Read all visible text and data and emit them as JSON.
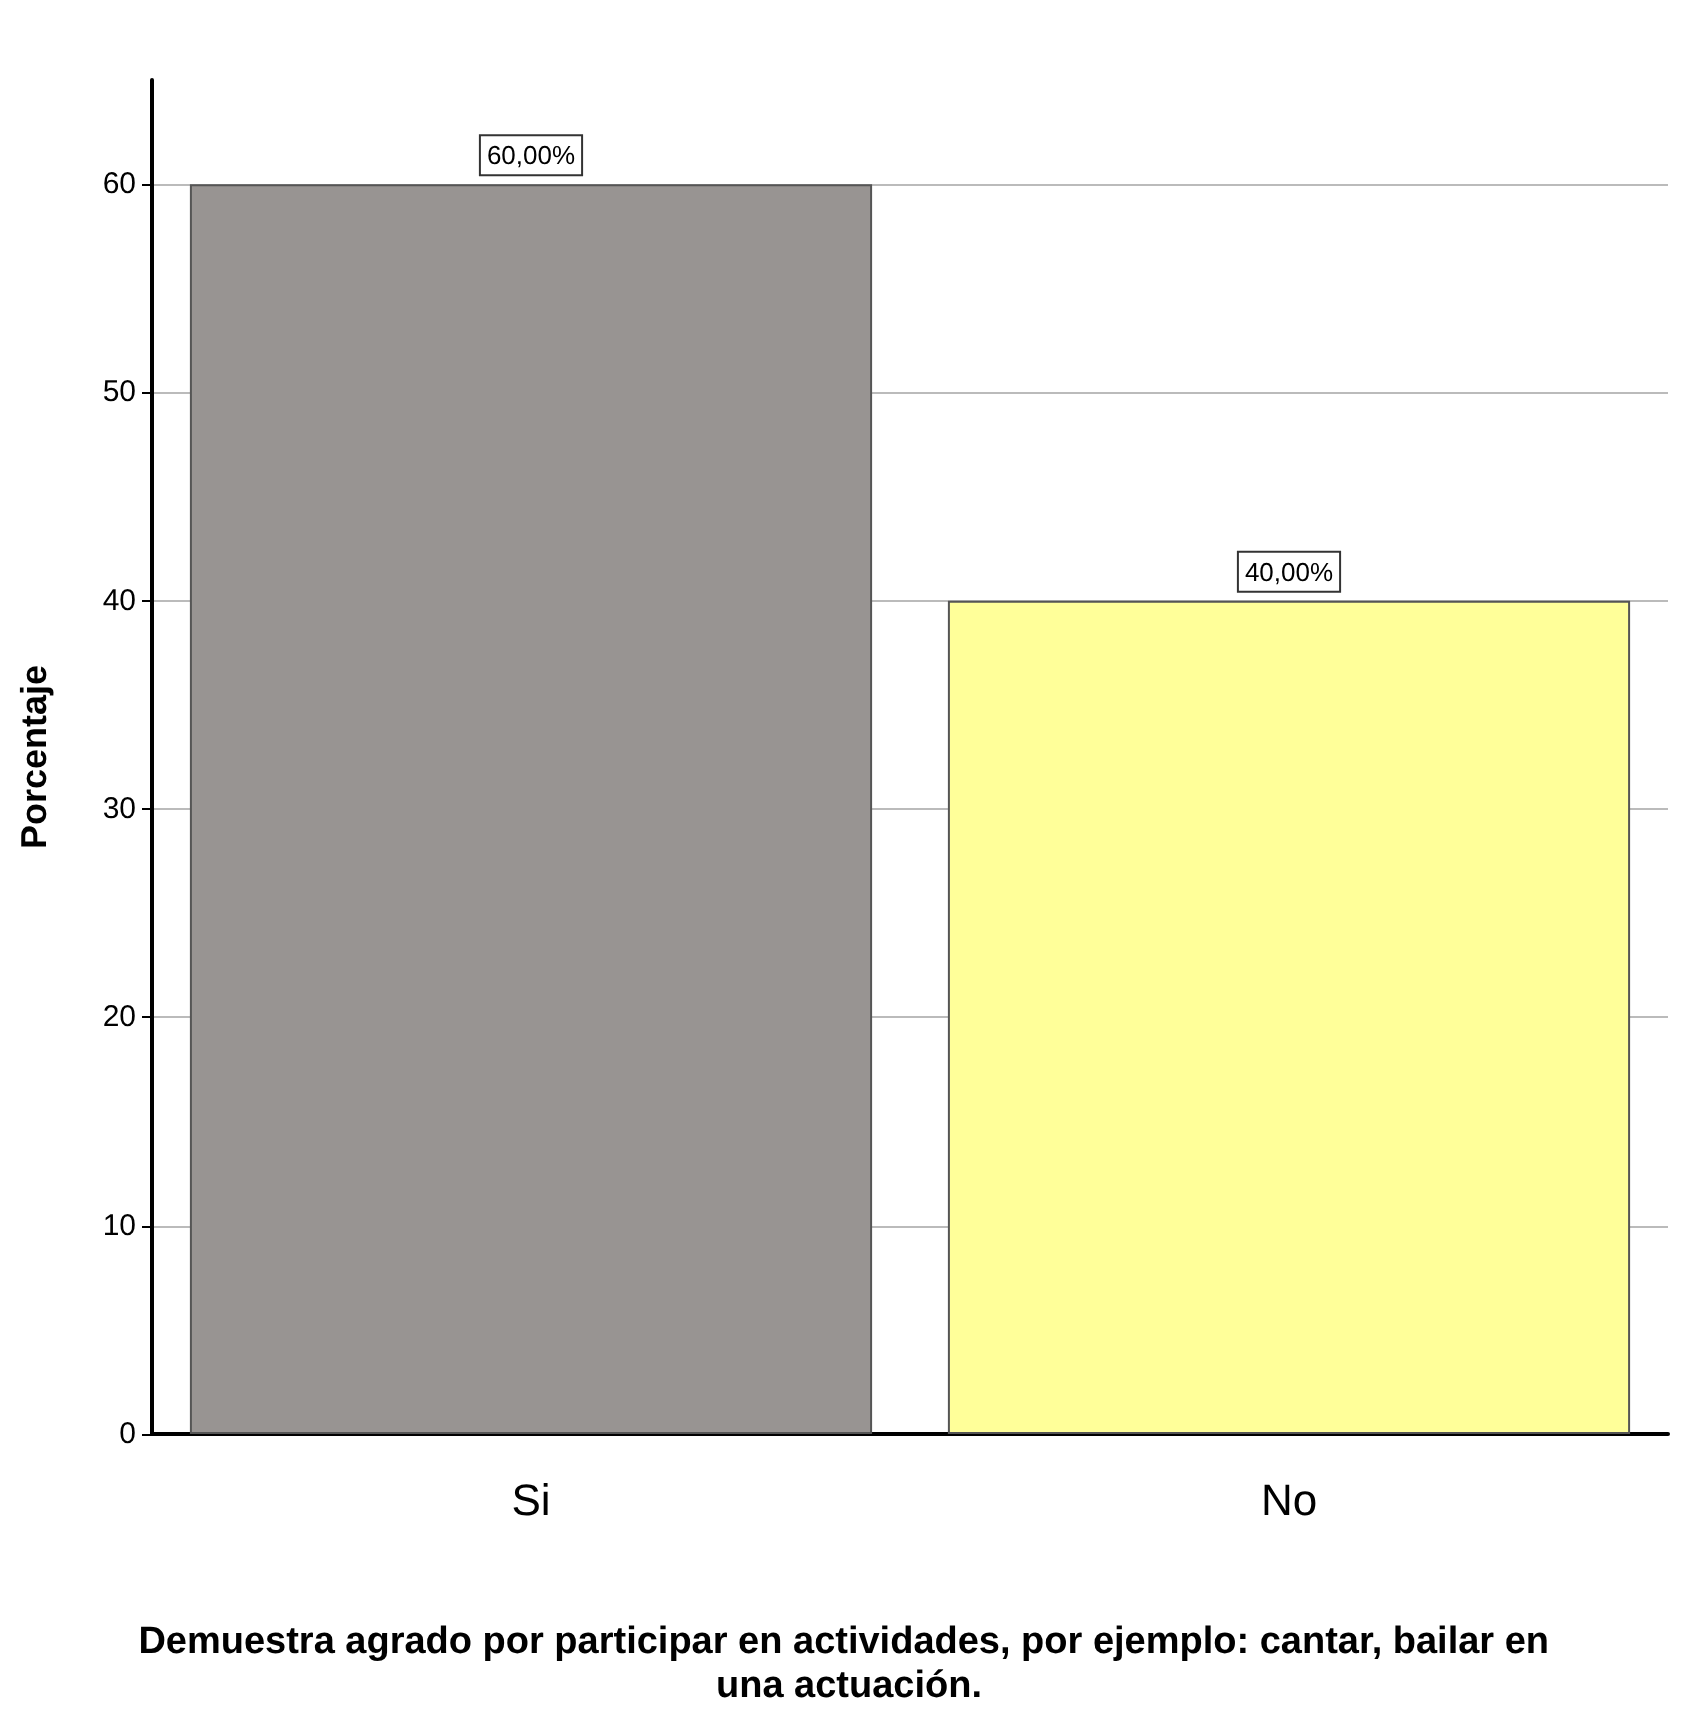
{
  "chart_data": {
    "type": "bar",
    "categories": [
      "Si",
      "No"
    ],
    "values": [
      60,
      40
    ],
    "colors": [
      "#989492",
      "#ffff99"
    ],
    "value_labels": [
      "60,00%",
      "40,00%"
    ],
    "ylim": [
      0,
      65
    ],
    "yticks": [
      0,
      10,
      20,
      30,
      40,
      50,
      60
    ],
    "grid": "y",
    "ylabel": "Porcentaje",
    "xlabel": "Demuestra agrado por participar en actividades, por ejemplo: cantar, bailar en una actuación."
  }
}
